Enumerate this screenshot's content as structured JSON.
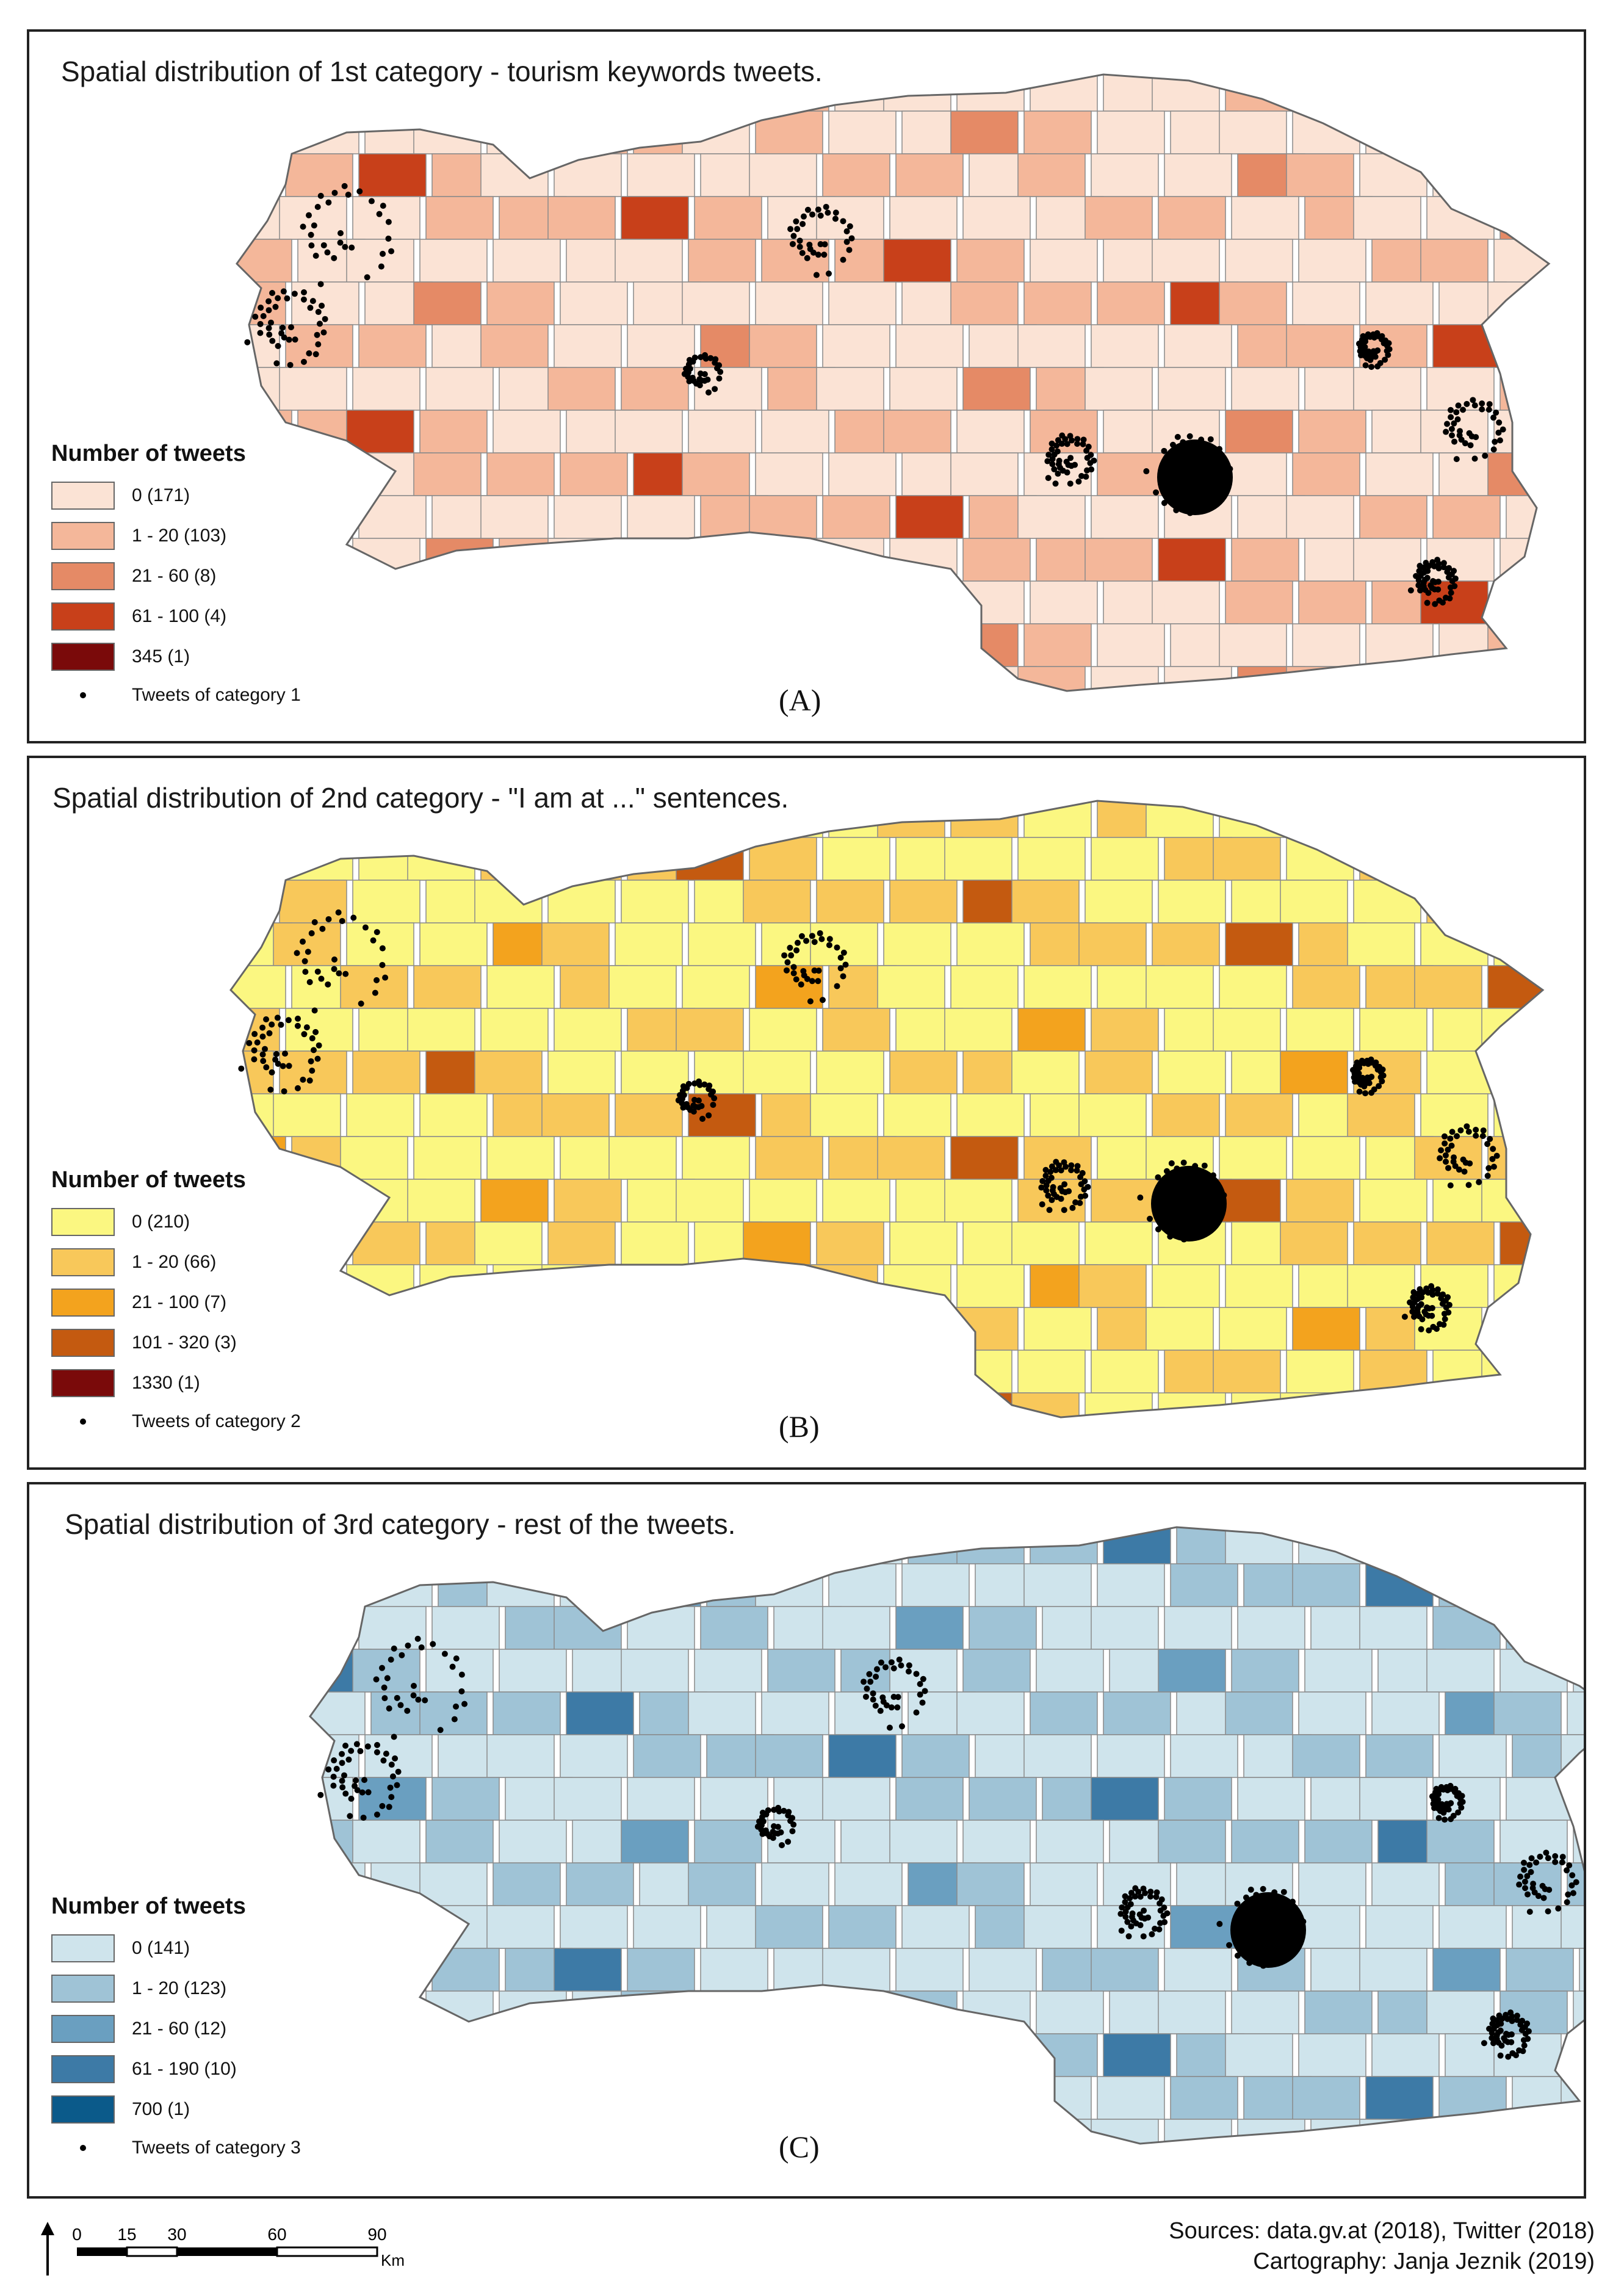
{
  "panels": [
    {
      "id": "a",
      "title": "Spatial distribution of 1st category - tourism keywords tweets.",
      "tag": "(A)",
      "legend_title": "Number of tweets",
      "classes": [
        {
          "label": "0 (171)",
          "color": "#fbe3d5"
        },
        {
          "label": "1 - 20 (103)",
          "color": "#f4b79a"
        },
        {
          "label": "21 - 60 (8)",
          "color": "#e58a66"
        },
        {
          "label": "61 - 100 (4)",
          "color": "#c8401a"
        },
        {
          "label": "345 (1)",
          "color": "#7a0a0a"
        }
      ],
      "dots_label": "Tweets of category 1"
    },
    {
      "id": "b",
      "title": "Spatial distribution of 2nd category - \"I am at ...\" sentences.",
      "tag": "(B)",
      "legend_title": "Number of tweets",
      "classes": [
        {
          "label": "0 (210)",
          "color": "#fbf781"
        },
        {
          "label": "1 - 20 (66)",
          "color": "#f8c85a"
        },
        {
          "label": "21 - 100 (7)",
          "color": "#f3a31e"
        },
        {
          "label": "101 - 320 (3)",
          "color": "#c45a10"
        },
        {
          "label": "1330 (1)",
          "color": "#7a0a0a"
        }
      ],
      "dots_label": "Tweets of category 2"
    },
    {
      "id": "c",
      "title": "Spatial distribution of 3rd category - rest of the tweets.",
      "tag": "(C)",
      "legend_title": "Number of tweets",
      "classes": [
        {
          "label": "0 (141)",
          "color": "#cfe4ec"
        },
        {
          "label": "1 - 20 (123)",
          "color": "#9fc3d6"
        },
        {
          "label": "21 - 60 (12)",
          "color": "#6a9fc0"
        },
        {
          "label": "61 - 190 (10)",
          "color": "#3d7aa6"
        },
        {
          "label": "700 (1)",
          "color": "#0b5a8a"
        }
      ],
      "dots_label": "Tweets of category 3"
    }
  ],
  "scale": {
    "ticks": [
      "0",
      "15",
      "30",
      "60",
      "90"
    ],
    "unit": "Km"
  },
  "credits": {
    "sources": "Sources: data.gv.at (2018), Twitter (2018)",
    "cartography": "Cartography: Janja Jeznik (2019)"
  }
}
